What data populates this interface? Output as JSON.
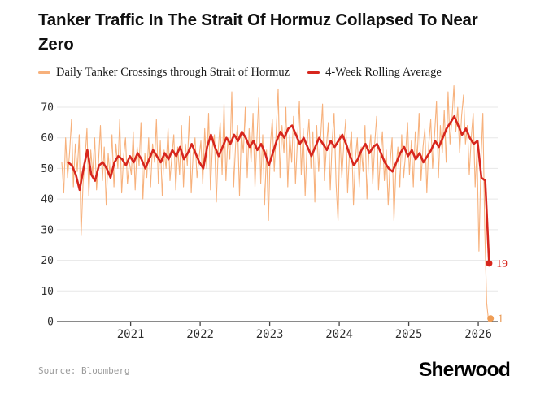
{
  "header": {
    "title": "Tanker Traffic In The Strait Of Hormuz Collapsed To Near Zero"
  },
  "legend": [
    {
      "label": "Daily Tanker Crossings through Strait of Hormuz",
      "color": "#F7B17C"
    },
    {
      "label": "4-Week Rolling Average",
      "color": "#D7261D"
    }
  ],
  "footer": {
    "source": "Source: Bloomberg",
    "brand": "Sherwood"
  },
  "colors": {
    "daily_line": "#F7B17C",
    "rolling_line": "#D7261D",
    "daily_dot": "#EF9D55",
    "daily_label": "#E8964F",
    "rolling_label": "#D7261D",
    "gridline": "#e7e7e7",
    "axis": "#444444",
    "tick_text": "#2e2e2e",
    "title_text": "#111111"
  },
  "chart_data": {
    "type": "line",
    "title": "Tanker Traffic In The Strait Of Hormuz Collapsed To Near Zero",
    "xlabel": "",
    "ylabel": "",
    "xlim": [
      2019.94,
      2026.28
    ],
    "ylim": [
      0,
      78
    ],
    "xticks": [
      2021,
      2022,
      2023,
      2024,
      2025,
      2026
    ],
    "xtick_labels": [
      "2021",
      "2022",
      "2023",
      "2024",
      "2025",
      "2026"
    ],
    "yticks": [
      0,
      10,
      20,
      30,
      40,
      50,
      60,
      70
    ],
    "grid": "horizontal",
    "legend_position": "top-left",
    "series": [
      {
        "name": "Daily Tanker Crossings through Strait of Hormuz",
        "color": "#F7B17C",
        "x_start": 2020.01,
        "x_step": 0.027778,
        "values": [
          52,
          42,
          60,
          47,
          55,
          66,
          44,
          58,
          49,
          61,
          28,
          45,
          53,
          63,
          41,
          56,
          48,
          60,
          43,
          52,
          64,
          46,
          57,
          38,
          55,
          47,
          61,
          44,
          58,
          50,
          66,
          42,
          54,
          60,
          45,
          52,
          48,
          62,
          43,
          57,
          51,
          65,
          40,
          55,
          47,
          60,
          44,
          58,
          52,
          66,
          45,
          59,
          41,
          56,
          50,
          63,
          46,
          54,
          61,
          43,
          57,
          48,
          64,
          44,
          58,
          51,
          67,
          42,
          55,
          60,
          47,
          53,
          59,
          45,
          63,
          50,
          68,
          43,
          57,
          61,
          39,
          56,
          65,
          48,
          71,
          46,
          60,
          53,
          75,
          44,
          58,
          64,
          41,
          62,
          55,
          70,
          47,
          63,
          52,
          68,
          44,
          59,
          73,
          45,
          61,
          38,
          56,
          33,
          58,
          66,
          49,
          62,
          76,
          47,
          64,
          55,
          70,
          44,
          61,
          52,
          67,
          45,
          59,
          72,
          48,
          63,
          41,
          58,
          66,
          50,
          62,
          39,
          64,
          49,
          60,
          71,
          46,
          57,
          65,
          43,
          59,
          68,
          45,
          33,
          61,
          47,
          58,
          66,
          42,
          56,
          62,
          38,
          53,
          60,
          44,
          57,
          49,
          64,
          40,
          55,
          61,
          45,
          58,
          67,
          43,
          54,
          62,
          46,
          56,
          38,
          52,
          60,
          33,
          50,
          57,
          44,
          61,
          47,
          55,
          65,
          48,
          59,
          44,
          62,
          53,
          68,
          46,
          57,
          63,
          42,
          58,
          66,
          50,
          61,
          72,
          47,
          64,
          55,
          69,
          52,
          75,
          58,
          66,
          77,
          62,
          70,
          55,
          67,
          74,
          58,
          64,
          48,
          60,
          68,
          44,
          56,
          23,
          52,
          68,
          30,
          6,
          0,
          1
        ],
        "end_value": 1
      },
      {
        "name": "4-Week Rolling Average",
        "color": "#D7261D",
        "x_start": 2020.1,
        "x_step": 0.055556,
        "values": [
          52,
          51,
          48,
          43,
          50,
          56,
          48,
          46,
          51,
          52,
          50,
          47,
          52,
          54,
          53,
          51,
          54,
          52,
          55,
          53,
          50,
          53,
          56,
          54,
          52,
          55,
          53,
          56,
          54,
          57,
          53,
          55,
          58,
          55,
          52,
          50,
          57,
          61,
          57,
          54,
          57,
          60,
          58,
          61,
          59,
          62,
          60,
          57,
          59,
          56,
          58,
          55,
          51,
          55,
          59,
          62,
          60,
          63,
          64,
          61,
          58,
          60,
          57,
          54,
          57,
          60,
          58,
          56,
          59,
          57,
          59,
          61,
          58,
          54,
          51,
          53,
          56,
          58,
          55,
          57,
          58,
          55,
          52,
          50,
          49,
          52,
          55,
          57,
          54,
          56,
          53,
          55,
          52,
          54,
          56,
          59,
          57,
          60,
          63,
          65,
          67,
          64,
          61,
          63,
          60,
          58,
          59,
          47,
          46,
          19
        ],
        "end_value": 19
      }
    ],
    "annotations": [
      {
        "label": "19",
        "x": 2026.156,
        "y": 19,
        "color": "#D7261D",
        "series": "4-Week Rolling Average"
      },
      {
        "label": "1",
        "x": 2026.177,
        "y": 1,
        "color": "#E8964F",
        "series": "Daily Tanker Crossings through Strait of Hormuz"
      }
    ]
  }
}
